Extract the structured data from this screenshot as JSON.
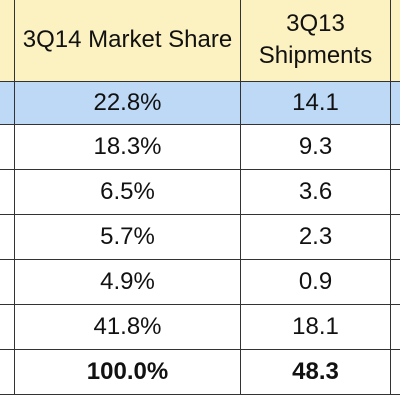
{
  "table": {
    "header": [
      "3Q14 Market Share",
      "3Q13 Shipments"
    ],
    "rows": [
      [
        "22.8%",
        "14.1"
      ],
      [
        "18.3%",
        "9.3"
      ],
      [
        "6.5%",
        "3.6"
      ],
      [
        "5.7%",
        "2.3"
      ],
      [
        "4.9%",
        "0.9"
      ],
      [
        "41.8%",
        "18.1"
      ]
    ],
    "total": [
      "100.0%",
      "48.3"
    ]
  }
}
